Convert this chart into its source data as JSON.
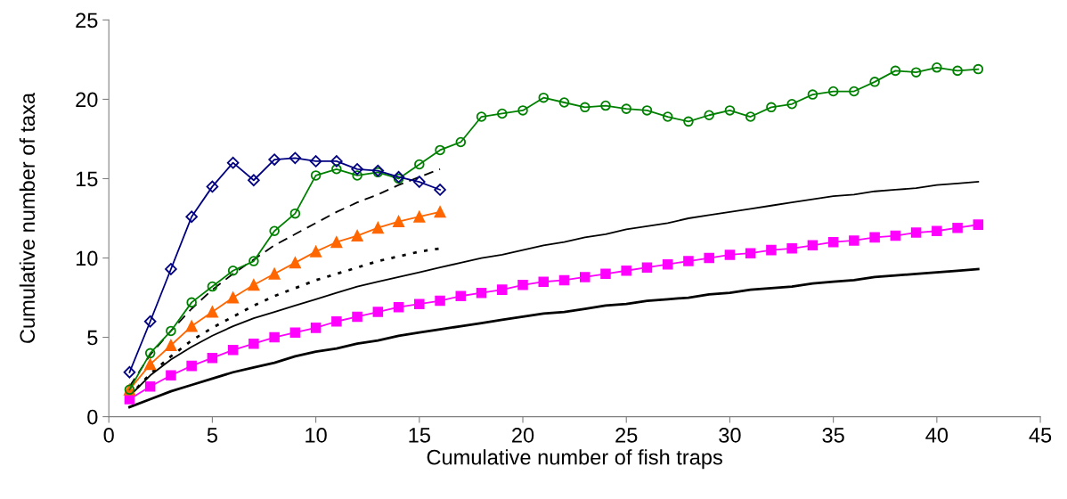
{
  "chart_data": {
    "type": "line",
    "xlabel": "Cumulative number of fish traps",
    "ylabel": "Cumulative number of taxa",
    "x": [
      1,
      2,
      3,
      4,
      5,
      6,
      7,
      8,
      9,
      10,
      11,
      12,
      13,
      14,
      15,
      16,
      17,
      18,
      19,
      20,
      21,
      22,
      23,
      24,
      25,
      26,
      27,
      28,
      29,
      30,
      31,
      32,
      33,
      34,
      35,
      36,
      37,
      38,
      39,
      40,
      41,
      42
    ],
    "xlim": [
      0,
      45
    ],
    "xticks": [
      0,
      5,
      10,
      15,
      20,
      25,
      30,
      35,
      40,
      45
    ],
    "ylim": [
      0,
      25
    ],
    "yticks": [
      0,
      5,
      10,
      15,
      20,
      25
    ],
    "grid": false,
    "series": [
      {
        "color": "#000000",
        "marker": "none",
        "line_style": "solid",
        "values": [
          1.3,
          2.6,
          3.6,
          4.4,
          5.1,
          5.7,
          6.2,
          6.6,
          7.0,
          7.4,
          7.8,
          8.2,
          8.5,
          8.8,
          9.1,
          9.4,
          9.7,
          10.0,
          10.2,
          10.5,
          10.8,
          11.0,
          11.3,
          11.5,
          11.8,
          12.0,
          12.2,
          12.5,
          12.7,
          12.9,
          13.1,
          13.3,
          13.5,
          13.7,
          13.9,
          14.0,
          14.2,
          14.3,
          14.4,
          14.6,
          14.7,
          14.8
        ]
      },
      {
        "color": "#000000",
        "marker": "none",
        "line_style": "solid",
        "values": [
          0.6,
          1.1,
          1.6,
          2.0,
          2.4,
          2.8,
          3.1,
          3.4,
          3.8,
          4.1,
          4.3,
          4.6,
          4.8,
          5.1,
          5.3,
          5.5,
          5.7,
          5.9,
          6.1,
          6.3,
          6.5,
          6.6,
          6.8,
          7.0,
          7.1,
          7.3,
          7.4,
          7.5,
          7.7,
          7.8,
          8.0,
          8.1,
          8.2,
          8.4,
          8.5,
          8.6,
          8.8,
          8.9,
          9.0,
          9.1,
          9.2,
          9.3
        ]
      },
      {
        "color": "#000000",
        "marker": "none",
        "line_style": "dashed",
        "x": [
          1,
          2,
          3,
          4,
          5,
          6,
          7,
          8,
          9,
          10,
          11,
          12,
          13,
          14,
          15,
          16
        ],
        "values": [
          1.9,
          3.9,
          5.4,
          6.8,
          8.0,
          9.0,
          9.9,
          10.8,
          11.5,
          12.2,
          12.9,
          13.5,
          14.0,
          14.6,
          15.1,
          15.6
        ]
      },
      {
        "color": "#000000",
        "marker": "none",
        "line_style": "dotted",
        "x": [
          1,
          2,
          3,
          4,
          5,
          6,
          7,
          8,
          9,
          10,
          11,
          12,
          13,
          14,
          15,
          16
        ],
        "values": [
          1.3,
          2.7,
          3.8,
          4.8,
          5.6,
          6.3,
          7.0,
          7.6,
          8.1,
          8.6,
          9.0,
          9.4,
          9.8,
          10.1,
          10.4,
          10.6
        ]
      },
      {
        "color": "#ff00ff",
        "marker": "square",
        "line_style": "solid",
        "values": [
          1.1,
          1.9,
          2.6,
          3.2,
          3.7,
          4.2,
          4.6,
          5.0,
          5.3,
          5.6,
          6.0,
          6.3,
          6.6,
          6.9,
          7.1,
          7.3,
          7.6,
          7.8,
          8.0,
          8.3,
          8.5,
          8.6,
          8.8,
          9.0,
          9.2,
          9.4,
          9.6,
          9.8,
          10.0,
          10.2,
          10.3,
          10.5,
          10.6,
          10.8,
          11.0,
          11.1,
          11.3,
          11.4,
          11.6,
          11.7,
          11.9,
          12.1
        ]
      },
      {
        "color": "#ff6600",
        "marker": "triangle",
        "line_style": "solid",
        "x": [
          1,
          2,
          3,
          4,
          5,
          6,
          7,
          8,
          9,
          10,
          11,
          12,
          13,
          14,
          15,
          16
        ],
        "values": [
          1.7,
          3.3,
          4.5,
          5.7,
          6.6,
          7.5,
          8.3,
          9.0,
          9.7,
          10.4,
          11.0,
          11.4,
          11.9,
          12.3,
          12.6,
          12.9
        ]
      },
      {
        "color": "#008000",
        "marker": "circle",
        "line_style": "solid",
        "values": [
          1.7,
          4.0,
          5.4,
          7.2,
          8.2,
          9.2,
          9.8,
          11.7,
          12.8,
          15.2,
          15.6,
          15.2,
          15.4,
          15.0,
          15.9,
          16.8,
          17.3,
          18.9,
          19.1,
          19.3,
          20.1,
          19.8,
          19.5,
          19.6,
          19.4,
          19.3,
          18.9,
          18.6,
          19.0,
          19.3,
          18.9,
          19.5,
          19.7,
          20.3,
          20.5,
          20.5,
          21.1,
          21.8,
          21.7,
          22.0,
          21.8,
          21.9
        ]
      },
      {
        "color": "#000080",
        "marker": "diamond",
        "line_style": "solid",
        "x": [
          1,
          2,
          3,
          4,
          5,
          6,
          7,
          8,
          9,
          10,
          11,
          12,
          13,
          14,
          15,
          16
        ],
        "values": [
          2.8,
          6.0,
          9.3,
          12.6,
          14.5,
          16.0,
          14.9,
          16.2,
          16.3,
          16.1,
          16.1,
          15.6,
          15.5,
          15.1,
          14.8,
          14.3
        ]
      }
    ]
  }
}
